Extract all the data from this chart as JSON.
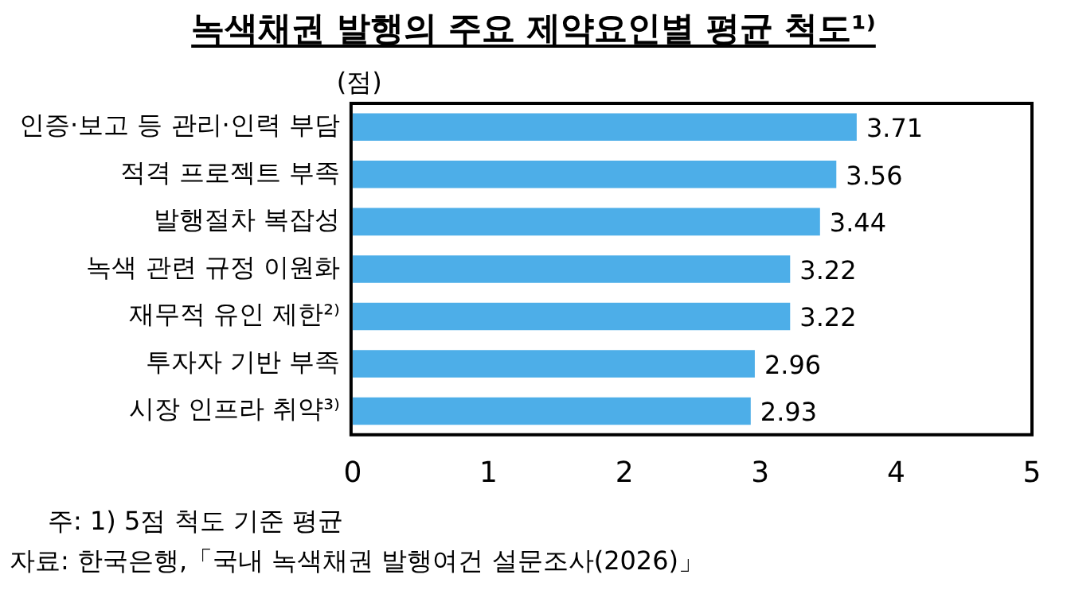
{
  "chart_data": {
    "type": "bar",
    "orientation": "horizontal",
    "title": "녹색채권 발행의 주요 제약요인별 평균 척도¹⁾",
    "xlabel": "(점)",
    "categories": [
      "인증·보고 등 관리·인력 부담",
      "적격 프로젝트 부족",
      "발행절차 복잡성",
      "녹색 관련 규정 이원화",
      "재무적 유인 제한²⁾",
      "투자자 기반 부족",
      "시장 인프라 취약³⁾"
    ],
    "values": [
      3.71,
      3.56,
      3.44,
      3.22,
      3.22,
      2.96,
      2.93
    ],
    "color": "#4daee8",
    "data_labels": true,
    "xlim": [
      0,
      5
    ],
    "xticks": [
      0,
      1,
      2,
      3,
      4,
      5
    ],
    "annotations": [
      "주: 1) 5점 척도 기준 평균",
      "자료: 한국은행,「국내 녹색채권 발행여건 설문조사(2026)」"
    ]
  }
}
